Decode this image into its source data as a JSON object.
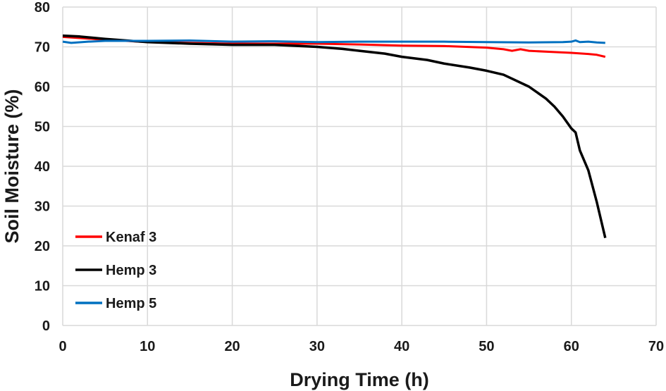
{
  "chart_data": {
    "type": "line",
    "title": "",
    "xlabel": "Drying Time (h)",
    "ylabel": "Soil Moisture (%)",
    "xlim": [
      0,
      70
    ],
    "ylim": [
      0,
      80
    ],
    "xticks": [
      0,
      10,
      20,
      30,
      40,
      50,
      60,
      70
    ],
    "yticks": [
      0,
      10,
      20,
      30,
      40,
      50,
      60,
      70,
      80
    ],
    "grid": true,
    "legend_position": "left-bottom",
    "series": [
      {
        "name": "Kenaf 3",
        "color": "#ff0000",
        "x": [
          0,
          5,
          10,
          15,
          20,
          25,
          30,
          35,
          40,
          45,
          50,
          52,
          53,
          54,
          55,
          58,
          60,
          62,
          63,
          64
        ],
        "y": [
          72.5,
          71.8,
          71.2,
          71.0,
          70.8,
          70.8,
          70.8,
          70.6,
          70.3,
          70.2,
          69.8,
          69.4,
          69.0,
          69.4,
          69.0,
          68.7,
          68.5,
          68.2,
          68.0,
          67.5
        ]
      },
      {
        "name": "Hemp 3",
        "color": "#000000",
        "x": [
          0,
          2,
          5,
          10,
          15,
          20,
          25,
          30,
          33,
          35,
          38,
          40,
          43,
          45,
          48,
          50,
          52,
          53,
          55,
          56,
          57,
          58,
          59,
          60,
          60.5,
          61,
          62,
          63,
          64
        ],
        "y": [
          72.8,
          72.6,
          72.0,
          71.2,
          70.8,
          70.5,
          70.5,
          70.0,
          69.5,
          69.0,
          68.3,
          67.5,
          66.7,
          65.8,
          64.8,
          64.0,
          63.0,
          62.0,
          60.0,
          58.5,
          57.0,
          55.0,
          52.5,
          49.5,
          48.5,
          44.0,
          39.0,
          31.0,
          22.0
        ]
      },
      {
        "name": "Hemp 5",
        "color": "#0070c0",
        "x": [
          0,
          1,
          3,
          5,
          10,
          15,
          20,
          25,
          30,
          35,
          40,
          45,
          50,
          55,
          59,
          60,
          60.5,
          61,
          62,
          63,
          64
        ],
        "y": [
          71.3,
          71.0,
          71.3,
          71.5,
          71.5,
          71.6,
          71.3,
          71.4,
          71.2,
          71.3,
          71.3,
          71.3,
          71.2,
          71.1,
          71.2,
          71.3,
          71.6,
          71.2,
          71.3,
          71.1,
          71.0
        ]
      }
    ]
  }
}
